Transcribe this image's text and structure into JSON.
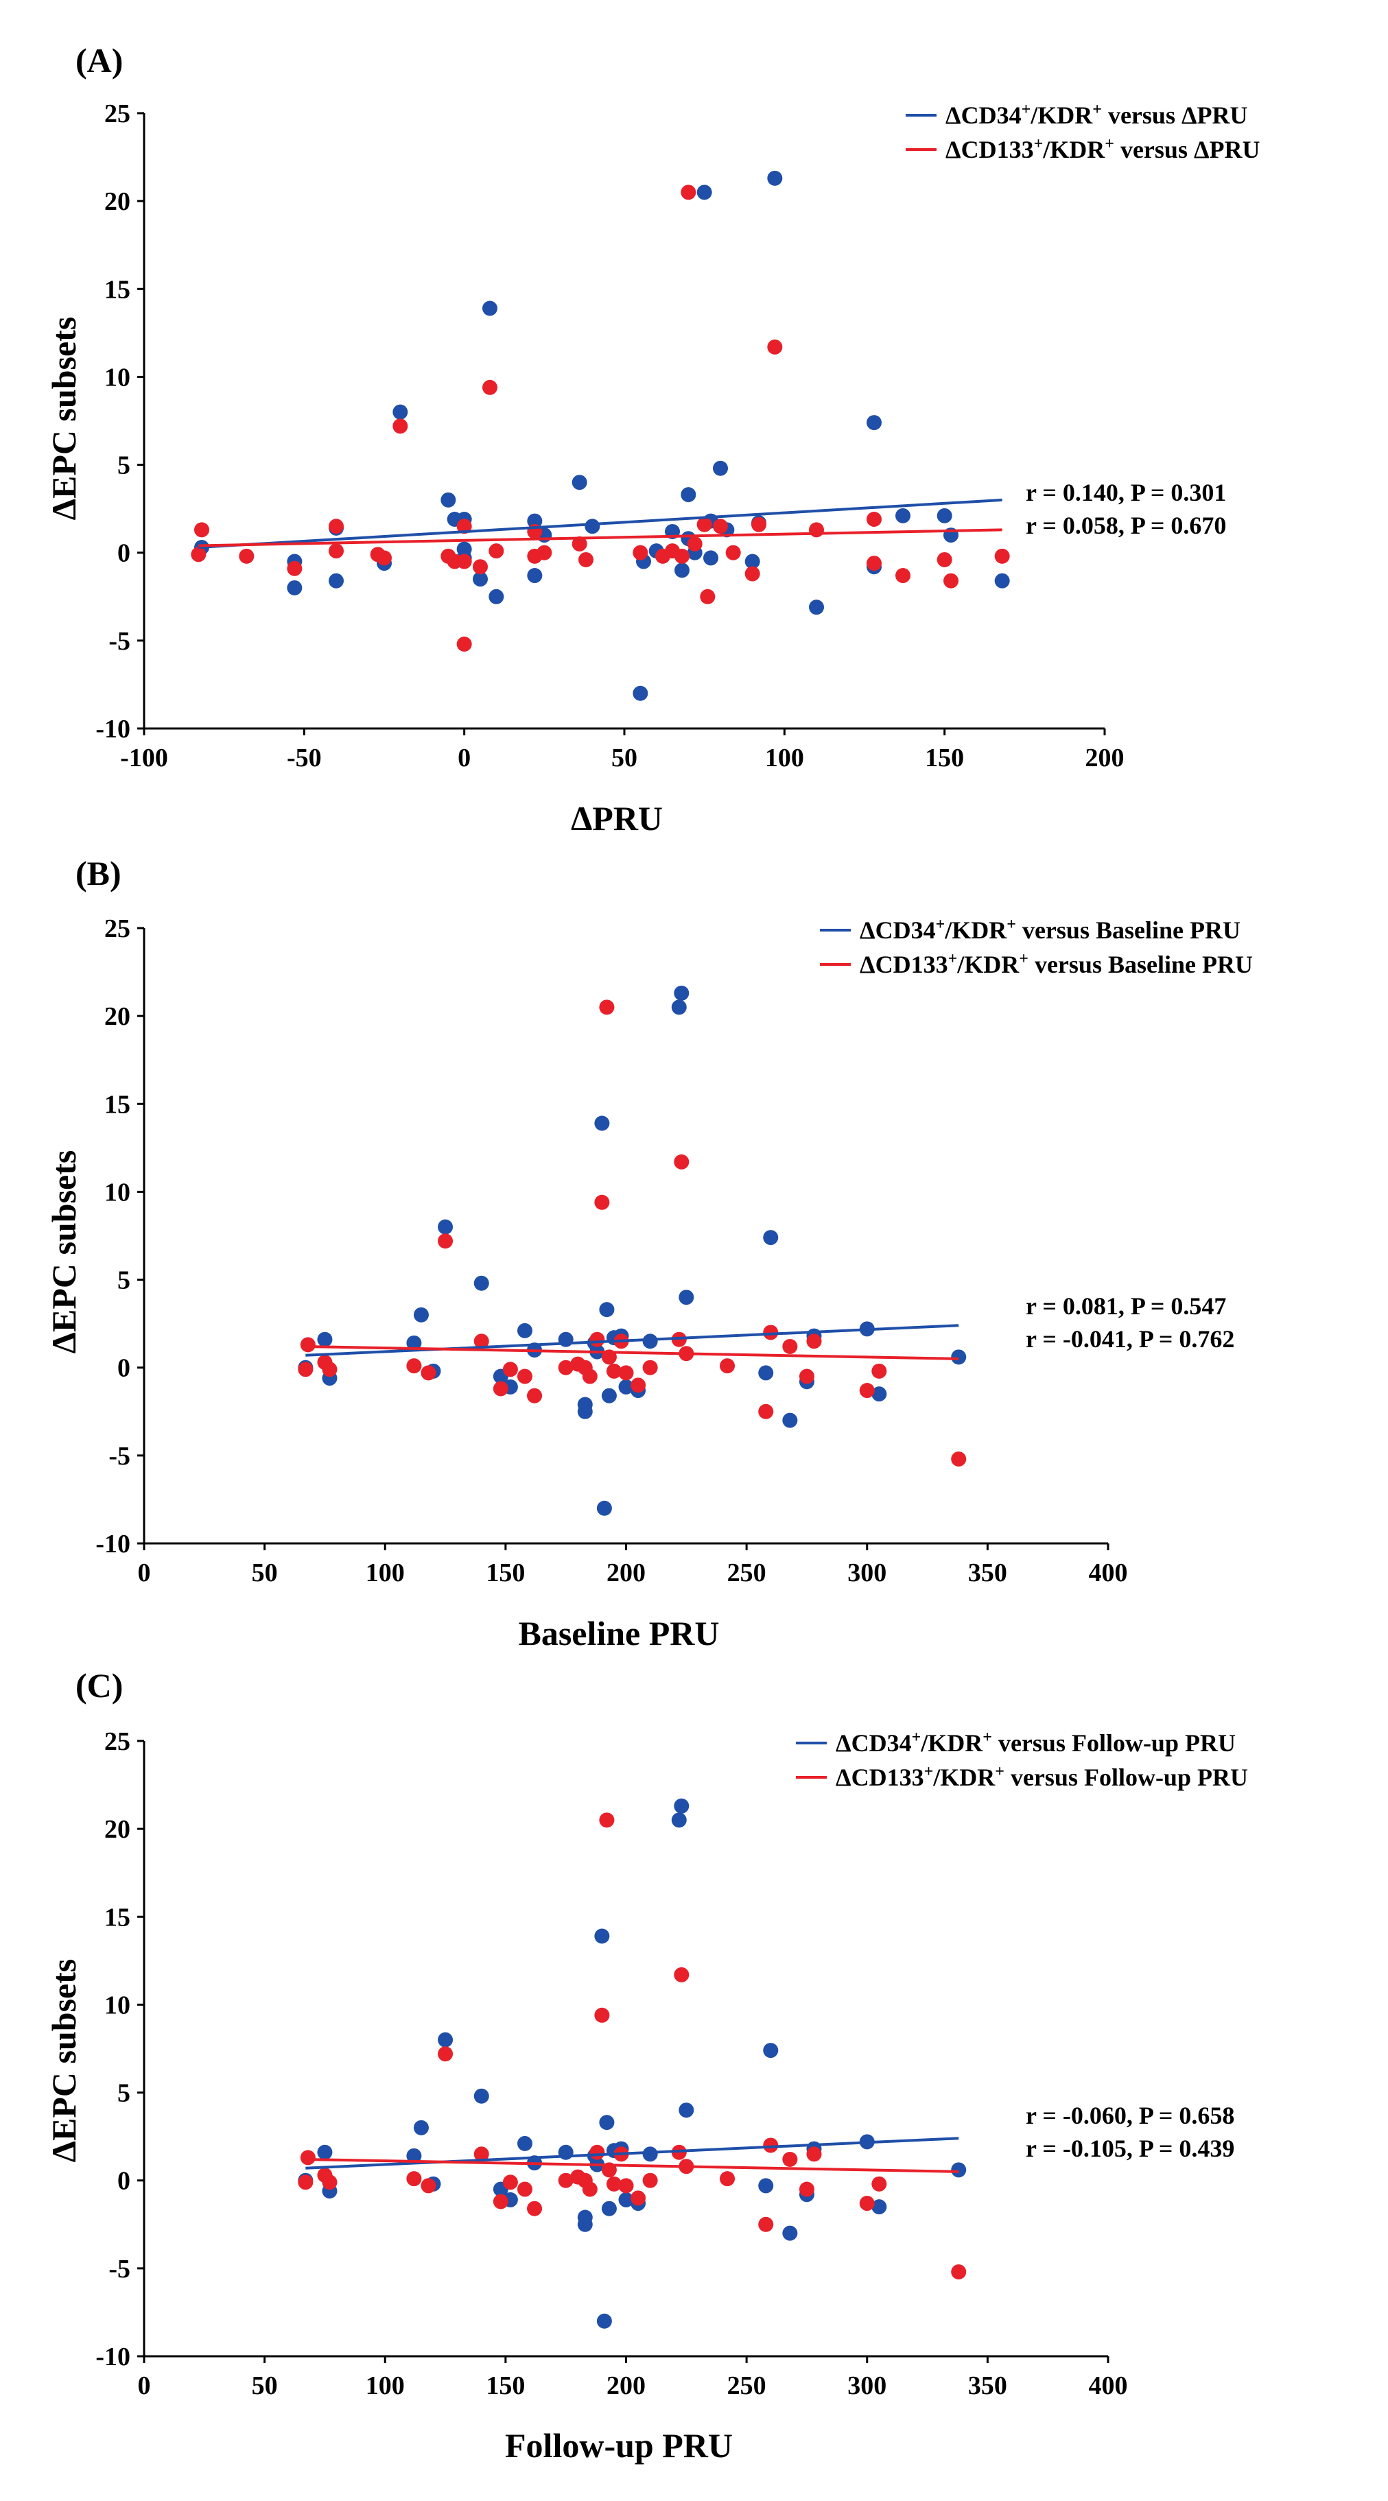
{
  "colors": {
    "series1": "#1f4fa8",
    "series2": "#e8202a"
  },
  "chart_data": [
    {
      "panel": "(A)",
      "type": "scatter",
      "xlabel": "ΔPRU",
      "ylabel": "ΔEPC subsets",
      "xlim": [
        -100,
        200
      ],
      "ylim": [
        -10,
        25
      ],
      "xticks": [
        -100,
        -50,
        0,
        50,
        100,
        150,
        200
      ],
      "yticks": [
        -10,
        -5,
        0,
        5,
        10,
        15,
        20,
        25
      ],
      "legend_position": "top-right",
      "series": [
        {
          "name_parts": [
            "ΔCD34",
            "+",
            "/KDR",
            "+",
            " versus ΔPRU"
          ],
          "color": "#1f4fa8",
          "trend": [
            [
              -83,
              0.3
            ],
            [
              168,
              3.0
            ]
          ],
          "annotation": "r = 0.140, P = 0.301",
          "points": [
            [
              -82,
              0.3
            ],
            [
              -53,
              -2.0
            ],
            [
              -53,
              -0.5
            ],
            [
              -40,
              1.4
            ],
            [
              -40,
              -1.6
            ],
            [
              -25,
              -0.6
            ],
            [
              -20,
              8.0
            ],
            [
              -5,
              3.0
            ],
            [
              -3,
              1.9
            ],
            [
              0,
              1.9
            ],
            [
              0,
              0.2
            ],
            [
              0,
              -0.3
            ],
            [
              5,
              -1.5
            ],
            [
              8,
              13.9
            ],
            [
              10,
              -2.5
            ],
            [
              22,
              1.8
            ],
            [
              22,
              -1.3
            ],
            [
              25,
              1.0
            ],
            [
              36,
              4.0
            ],
            [
              40,
              1.5
            ],
            [
              55,
              -8.0
            ],
            [
              56,
              -0.5
            ],
            [
              60,
              0.1
            ],
            [
              65,
              1.2
            ],
            [
              68,
              -1.0
            ],
            [
              70,
              3.3
            ],
            [
              70,
              0.8
            ],
            [
              72,
              0.0
            ],
            [
              75,
              20.5
            ],
            [
              77,
              1.8
            ],
            [
              77,
              -0.3
            ],
            [
              80,
              4.8
            ],
            [
              82,
              1.3
            ],
            [
              90,
              -0.5
            ],
            [
              92,
              1.7
            ],
            [
              97,
              21.3
            ],
            [
              110,
              -3.1
            ],
            [
              128,
              7.4
            ],
            [
              128,
              -0.8
            ],
            [
              137,
              2.1
            ],
            [
              150,
              2.1
            ],
            [
              152,
              1.0
            ],
            [
              168,
              -1.6
            ]
          ]
        },
        {
          "name_parts": [
            "ΔCD133",
            "+",
            "/KDR",
            "+",
            " versus ΔPRU"
          ],
          "color": "#e8202a",
          "trend": [
            [
              -83,
              0.4
            ],
            [
              168,
              1.3
            ]
          ],
          "annotation": "r = 0.058, P = 0.670",
          "points": [
            [
              -82,
              1.3
            ],
            [
              -83,
              -0.1
            ],
            [
              -68,
              -0.2
            ],
            [
              -53,
              -0.9
            ],
            [
              -40,
              0.1
            ],
            [
              -40,
              1.5
            ],
            [
              -27,
              -0.1
            ],
            [
              -25,
              -0.3
            ],
            [
              -20,
              7.2
            ],
            [
              -5,
              -0.2
            ],
            [
              -3,
              -0.5
            ],
            [
              0,
              1.5
            ],
            [
              0,
              -5.2
            ],
            [
              0,
              -0.5
            ],
            [
              5,
              -0.8
            ],
            [
              8,
              9.4
            ],
            [
              10,
              0.1
            ],
            [
              22,
              -0.2
            ],
            [
              22,
              1.2
            ],
            [
              25,
              0.0
            ],
            [
              36,
              0.5
            ],
            [
              38,
              -0.4
            ],
            [
              55,
              0.0
            ],
            [
              62,
              -0.2
            ],
            [
              65,
              0.1
            ],
            [
              68,
              -0.2
            ],
            [
              70,
              20.5
            ],
            [
              72,
              0.5
            ],
            [
              75,
              1.6
            ],
            [
              76,
              -2.5
            ],
            [
              80,
              1.5
            ],
            [
              84,
              0.0
            ],
            [
              90,
              -1.2
            ],
            [
              92,
              1.6
            ],
            [
              97,
              11.7
            ],
            [
              110,
              1.3
            ],
            [
              128,
              1.9
            ],
            [
              128,
              -0.6
            ],
            [
              137,
              -1.3
            ],
            [
              150,
              -0.4
            ],
            [
              152,
              -1.6
            ],
            [
              168,
              -0.2
            ]
          ]
        }
      ]
    },
    {
      "panel": "(B)",
      "type": "scatter",
      "xlabel": "Baseline PRU",
      "ylabel": "ΔEPC subsets",
      "xlim": [
        0,
        400
      ],
      "ylim": [
        -10,
        25
      ],
      "xticks": [
        0,
        50,
        100,
        150,
        200,
        250,
        300,
        350,
        400
      ],
      "yticks": [
        -10,
        -5,
        0,
        5,
        10,
        15,
        20,
        25
      ],
      "legend_position": "top-right",
      "series": [
        {
          "name_parts": [
            "ΔCD34",
            "+",
            "/KDR",
            "+",
            " versus Baseline PRU"
          ],
          "color": "#1f4fa8",
          "trend": [
            [
              67,
              0.7
            ],
            [
              338,
              2.4
            ]
          ],
          "annotation": "r = 0.081, P = 0.547",
          "points": [
            [
              67,
              0.0
            ],
            [
              75,
              1.6
            ],
            [
              77,
              -0.6
            ],
            [
              112,
              1.4
            ],
            [
              115,
              3.0
            ],
            [
              120,
              -0.2
            ],
            [
              125,
              8.0
            ],
            [
              140,
              4.8
            ],
            [
              148,
              -0.5
            ],
            [
              152,
              -1.1
            ],
            [
              158,
              2.1
            ],
            [
              162,
              1.0
            ],
            [
              175,
              1.6
            ],
            [
              183,
              -2.1
            ],
            [
              183,
              -2.5
            ],
            [
              187,
              1.4
            ],
            [
              188,
              0.9
            ],
            [
              190,
              13.9
            ],
            [
              191,
              -8.0
            ],
            [
              192,
              3.3
            ],
            [
              193,
              -1.6
            ],
            [
              195,
              1.7
            ],
            [
              198,
              1.8
            ],
            [
              200,
              -1.1
            ],
            [
              205,
              -1.3
            ],
            [
              210,
              1.5
            ],
            [
              222,
              20.5
            ],
            [
              223,
              21.3
            ],
            [
              225,
              4.0
            ],
            [
              258,
              -0.3
            ],
            [
              260,
              7.4
            ],
            [
              268,
              -3.0
            ],
            [
              275,
              -0.8
            ],
            [
              278,
              1.8
            ],
            [
              300,
              2.2
            ],
            [
              305,
              -1.5
            ],
            [
              338,
              0.6
            ]
          ]
        },
        {
          "name_parts": [
            "ΔCD133",
            "+",
            "/KDR",
            "+",
            " versus Baseline PRU"
          ],
          "color": "#e8202a",
          "trend": [
            [
              67,
              1.2
            ],
            [
              338,
              0.5
            ]
          ],
          "annotation": "r = -0.041, P = 0.762",
          "points": [
            [
              67,
              -0.1
            ],
            [
              68,
              1.3
            ],
            [
              75,
              0.3
            ],
            [
              77,
              -0.1
            ],
            [
              112,
              0.1
            ],
            [
              118,
              -0.3
            ],
            [
              125,
              7.2
            ],
            [
              140,
              1.5
            ],
            [
              148,
              -1.2
            ],
            [
              152,
              -0.1
            ],
            [
              158,
              -0.5
            ],
            [
              162,
              -1.6
            ],
            [
              175,
              0.0
            ],
            [
              180,
              0.2
            ],
            [
              183,
              0.0
            ],
            [
              185,
              -0.5
            ],
            [
              188,
              1.6
            ],
            [
              190,
              9.4
            ],
            [
              192,
              20.5
            ],
            [
              193,
              0.6
            ],
            [
              195,
              -0.2
            ],
            [
              198,
              1.5
            ],
            [
              200,
              -0.3
            ],
            [
              205,
              -1.0
            ],
            [
              210,
              0.0
            ],
            [
              222,
              1.6
            ],
            [
              223,
              11.7
            ],
            [
              225,
              0.8
            ],
            [
              242,
              0.1
            ],
            [
              258,
              -2.5
            ],
            [
              260,
              2.0
            ],
            [
              268,
              1.2
            ],
            [
              275,
              -0.5
            ],
            [
              278,
              1.5
            ],
            [
              300,
              -1.3
            ],
            [
              305,
              -0.2
            ],
            [
              338,
              -5.2
            ]
          ]
        }
      ]
    },
    {
      "panel": "(C)",
      "type": "scatter",
      "xlabel": "Follow-up PRU",
      "ylabel": "ΔEPC subsets",
      "xlim": [
        0,
        400
      ],
      "ylim": [
        -10,
        25
      ],
      "xticks": [
        0,
        50,
        100,
        150,
        200,
        250,
        300,
        350,
        400
      ],
      "yticks": [
        -10,
        -5,
        0,
        5,
        10,
        15,
        20,
        25
      ],
      "legend_position": "top-right",
      "series": [
        {
          "name_parts": [
            "ΔCD34",
            "+",
            "/KDR",
            "+",
            " versus Follow-up PRU"
          ],
          "color": "#1f4fa8",
          "trend": [
            [
              67,
              0.7
            ],
            [
              338,
              2.4
            ]
          ],
          "annotation": "r = -0.060, P = 0.658",
          "points": [
            [
              67,
              0.0
            ],
            [
              75,
              1.6
            ],
            [
              77,
              -0.6
            ],
            [
              112,
              1.4
            ],
            [
              115,
              3.0
            ],
            [
              120,
              -0.2
            ],
            [
              125,
              8.0
            ],
            [
              140,
              4.8
            ],
            [
              148,
              -0.5
            ],
            [
              152,
              -1.1
            ],
            [
              158,
              2.1
            ],
            [
              162,
              1.0
            ],
            [
              175,
              1.6
            ],
            [
              183,
              -2.1
            ],
            [
              183,
              -2.5
            ],
            [
              187,
              1.4
            ],
            [
              188,
              0.9
            ],
            [
              190,
              13.9
            ],
            [
              191,
              -8.0
            ],
            [
              192,
              3.3
            ],
            [
              193,
              -1.6
            ],
            [
              195,
              1.7
            ],
            [
              198,
              1.8
            ],
            [
              200,
              -1.1
            ],
            [
              205,
              -1.3
            ],
            [
              210,
              1.5
            ],
            [
              222,
              20.5
            ],
            [
              223,
              21.3
            ],
            [
              225,
              4.0
            ],
            [
              258,
              -0.3
            ],
            [
              260,
              7.4
            ],
            [
              268,
              -3.0
            ],
            [
              275,
              -0.8
            ],
            [
              278,
              1.8
            ],
            [
              300,
              2.2
            ],
            [
              305,
              -1.5
            ],
            [
              338,
              0.6
            ]
          ]
        },
        {
          "name_parts": [
            "ΔCD133",
            "+",
            "/KDR",
            "+",
            " versus Follow-up PRU"
          ],
          "color": "#e8202a",
          "trend": [
            [
              67,
              1.2
            ],
            [
              338,
              0.5
            ]
          ],
          "annotation": "r = -0.105, P = 0.439",
          "points": [
            [
              67,
              -0.1
            ],
            [
              68,
              1.3
            ],
            [
              75,
              0.3
            ],
            [
              77,
              -0.1
            ],
            [
              112,
              0.1
            ],
            [
              118,
              -0.3
            ],
            [
              125,
              7.2
            ],
            [
              140,
              1.5
            ],
            [
              148,
              -1.2
            ],
            [
              152,
              -0.1
            ],
            [
              158,
              -0.5
            ],
            [
              162,
              -1.6
            ],
            [
              175,
              0.0
            ],
            [
              180,
              0.2
            ],
            [
              183,
              0.0
            ],
            [
              185,
              -0.5
            ],
            [
              188,
              1.6
            ],
            [
              190,
              9.4
            ],
            [
              192,
              20.5
            ],
            [
              193,
              0.6
            ],
            [
              195,
              -0.2
            ],
            [
              198,
              1.5
            ],
            [
              200,
              -0.3
            ],
            [
              205,
              -1.0
            ],
            [
              210,
              0.0
            ],
            [
              222,
              1.6
            ],
            [
              223,
              11.7
            ],
            [
              225,
              0.8
            ],
            [
              242,
              0.1
            ],
            [
              258,
              -2.5
            ],
            [
              260,
              2.0
            ],
            [
              268,
              1.2
            ],
            [
              275,
              -0.5
            ],
            [
              278,
              1.5
            ],
            [
              300,
              -1.3
            ],
            [
              305,
              -0.2
            ],
            [
              338,
              -5.2
            ]
          ]
        }
      ]
    }
  ]
}
